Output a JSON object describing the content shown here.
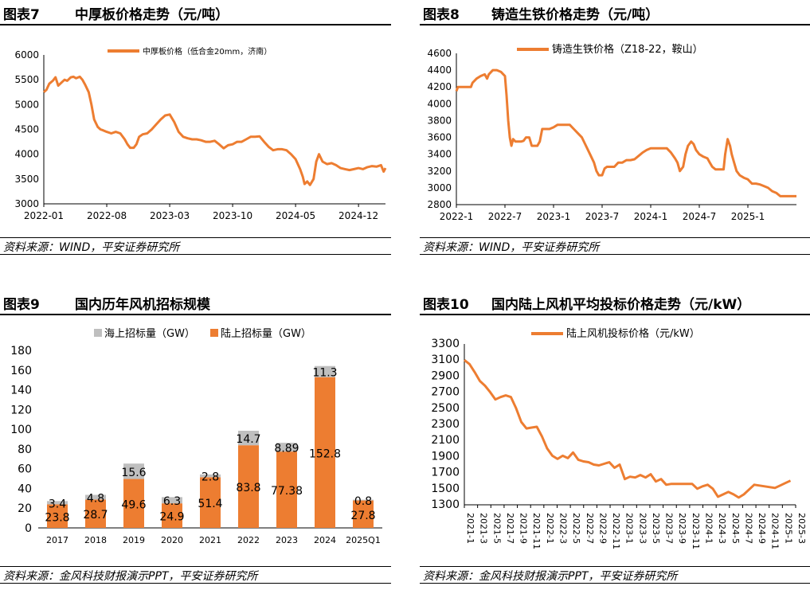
{
  "colors": {
    "series": "#ED7D31",
    "overseas": "#BFBFBF",
    "axis": "#000000"
  },
  "panels": [
    {
      "number": "图表7",
      "title": "中厚板价格走势（元/吨）",
      "source": "资料来源：WIND，平安证券研究所"
    },
    {
      "number": "图表8",
      "title": "铸造生铁价格走势（元/吨）",
      "source": "资料来源：WIND，平安证券研究所"
    },
    {
      "number": "图表9",
      "title": "国内历年风机招标规模",
      "source": "资料来源：金风科技财报演示PPT，平安证券研究所"
    },
    {
      "number": "图表10",
      "title": "国内陆上风机平均投标价格走势（元/kW）",
      "source": "资料来源：金风科技财报演示PPT，平安证券研究所"
    }
  ],
  "chart_data": [
    {
      "type": "line",
      "title": "中厚板价格走势（元/吨）",
      "legend": "中厚板价格（低合金20mm，济南）",
      "legend_position": "top",
      "ylim": [
        3000,
        6000
      ],
      "yticks": [
        "3000",
        "3500",
        "4000",
        "4500",
        "5000",
        "5500",
        "6000"
      ],
      "xlim": [
        0,
        38
      ],
      "xticks": [
        {
          "label": "2022-01",
          "x": 0
        },
        {
          "label": "2022-08",
          "x": 7
        },
        {
          "label": "2023-03",
          "x": 14
        },
        {
          "label": "2023-10",
          "x": 21
        },
        {
          "label": "2024-05",
          "x": 28
        },
        {
          "label": "2024-12",
          "x": 35
        }
      ],
      "points": [
        [
          0,
          5250
        ],
        [
          0.3,
          5300
        ],
        [
          0.6,
          5420
        ],
        [
          1,
          5480
        ],
        [
          1.3,
          5550
        ],
        [
          1.6,
          5380
        ],
        [
          2,
          5450
        ],
        [
          2.3,
          5500
        ],
        [
          2.6,
          5480
        ],
        [
          3,
          5550
        ],
        [
          3.3,
          5560
        ],
        [
          3.6,
          5530
        ],
        [
          4,
          5560
        ],
        [
          4.3,
          5500
        ],
        [
          4.6,
          5400
        ],
        [
          5,
          5250
        ],
        [
          5.3,
          5000
        ],
        [
          5.6,
          4700
        ],
        [
          6,
          4550
        ],
        [
          6.3,
          4500
        ],
        [
          6.6,
          4480
        ],
        [
          7,
          4450
        ],
        [
          7.5,
          4420
        ],
        [
          8,
          4450
        ],
        [
          8.5,
          4420
        ],
        [
          9,
          4300
        ],
        [
          9.3,
          4200
        ],
        [
          9.6,
          4130
        ],
        [
          10,
          4130
        ],
        [
          10.3,
          4200
        ],
        [
          10.6,
          4350
        ],
        [
          11,
          4400
        ],
        [
          11.5,
          4420
        ],
        [
          12,
          4500
        ],
        [
          12.5,
          4600
        ],
        [
          13,
          4700
        ],
        [
          13.5,
          4780
        ],
        [
          14,
          4800
        ],
        [
          14.5,
          4650
        ],
        [
          15,
          4450
        ],
        [
          15.5,
          4350
        ],
        [
          16,
          4320
        ],
        [
          16.5,
          4300
        ],
        [
          17,
          4300
        ],
        [
          17.5,
          4280
        ],
        [
          18,
          4250
        ],
        [
          18.5,
          4250
        ],
        [
          19,
          4270
        ],
        [
          19.5,
          4200
        ],
        [
          20,
          4120
        ],
        [
          20.5,
          4180
        ],
        [
          21,
          4200
        ],
        [
          21.5,
          4250
        ],
        [
          22,
          4250
        ],
        [
          22.5,
          4300
        ],
        [
          23,
          4350
        ],
        [
          23.5,
          4350
        ],
        [
          24,
          4360
        ],
        [
          24.5,
          4250
        ],
        [
          25,
          4150
        ],
        [
          25.5,
          4080
        ],
        [
          26,
          4100
        ],
        [
          26.5,
          4100
        ],
        [
          27,
          4080
        ],
        [
          27.5,
          4000
        ],
        [
          28,
          3900
        ],
        [
          28.5,
          3700
        ],
        [
          28.8,
          3550
        ],
        [
          29,
          3400
        ],
        [
          29.3,
          3450
        ],
        [
          29.6,
          3380
        ],
        [
          30,
          3500
        ],
        [
          30.3,
          3850
        ],
        [
          30.6,
          4000
        ],
        [
          31,
          3850
        ],
        [
          31.5,
          3800
        ],
        [
          32,
          3820
        ],
        [
          32.5,
          3780
        ],
        [
          33,
          3720
        ],
        [
          33.5,
          3700
        ],
        [
          34,
          3680
        ],
        [
          34.5,
          3700
        ],
        [
          35,
          3720
        ],
        [
          35.5,
          3700
        ],
        [
          36,
          3740
        ],
        [
          36.5,
          3760
        ],
        [
          37,
          3750
        ],
        [
          37.5,
          3780
        ],
        [
          37.8,
          3650
        ],
        [
          38,
          3720
        ]
      ]
    },
    {
      "type": "line",
      "title": "铸造生铁价格走势（元/吨）",
      "legend": "铸造生铁价格（Z18-22，鞍山）",
      "legend_position": "top",
      "ylim": [
        2800,
        4600
      ],
      "yticks": [
        "2800",
        "3000",
        "3200",
        "3400",
        "3600",
        "3800",
        "4000",
        "4200",
        "4400",
        "4600"
      ],
      "xlim": [
        0,
        42
      ],
      "xticks": [
        {
          "label": "2022-1",
          "x": 0
        },
        {
          "label": "2022-7",
          "x": 6
        },
        {
          "label": "2023-1",
          "x": 12
        },
        {
          "label": "2023-7",
          "x": 18
        },
        {
          "label": "2024-1",
          "x": 24
        },
        {
          "label": "2024-7",
          "x": 30
        },
        {
          "label": "2025-1",
          "x": 36
        }
      ],
      "points": [
        [
          0,
          4150
        ],
        [
          0.2,
          4200
        ],
        [
          1,
          4200
        ],
        [
          1.8,
          4200
        ],
        [
          2,
          4250
        ],
        [
          2.5,
          4300
        ],
        [
          3,
          4330
        ],
        [
          3.5,
          4350
        ],
        [
          3.8,
          4300
        ],
        [
          4,
          4350
        ],
        [
          4.5,
          4400
        ],
        [
          5,
          4400
        ],
        [
          5.5,
          4380
        ],
        [
          5.8,
          4350
        ],
        [
          6,
          4330
        ],
        [
          6.2,
          4100
        ],
        [
          6.4,
          3800
        ],
        [
          6.6,
          3600
        ],
        [
          6.8,
          3500
        ],
        [
          7,
          3580
        ],
        [
          7.3,
          3550
        ],
        [
          7.6,
          3550
        ],
        [
          8,
          3550
        ],
        [
          8.3,
          3560
        ],
        [
          8.6,
          3600
        ],
        [
          9,
          3600
        ],
        [
          9.3,
          3500
        ],
        [
          9.6,
          3500
        ],
        [
          10,
          3500
        ],
        [
          10.3,
          3550
        ],
        [
          10.6,
          3700
        ],
        [
          11,
          3700
        ],
        [
          11.5,
          3700
        ],
        [
          12,
          3720
        ],
        [
          12.5,
          3750
        ],
        [
          13,
          3750
        ],
        [
          13.5,
          3750
        ],
        [
          14,
          3750
        ],
        [
          14.5,
          3700
        ],
        [
          15,
          3650
        ],
        [
          15.5,
          3600
        ],
        [
          16,
          3500
        ],
        [
          16.5,
          3400
        ],
        [
          17,
          3300
        ],
        [
          17.3,
          3200
        ],
        [
          17.6,
          3150
        ],
        [
          18,
          3150
        ],
        [
          18.3,
          3230
        ],
        [
          18.6,
          3250
        ],
        [
          19,
          3250
        ],
        [
          19.5,
          3250
        ],
        [
          20,
          3300
        ],
        [
          20.5,
          3300
        ],
        [
          21,
          3330
        ],
        [
          21.5,
          3330
        ],
        [
          22,
          3340
        ],
        [
          22.5,
          3380
        ],
        [
          23,
          3420
        ],
        [
          23.5,
          3450
        ],
        [
          24,
          3470
        ],
        [
          24.5,
          3470
        ],
        [
          25,
          3470
        ],
        [
          25.5,
          3470
        ],
        [
          26,
          3470
        ],
        [
          26.5,
          3420
        ],
        [
          27,
          3350
        ],
        [
          27.3,
          3300
        ],
        [
          27.6,
          3200
        ],
        [
          28,
          3250
        ],
        [
          28.3,
          3400
        ],
        [
          28.6,
          3500
        ],
        [
          29,
          3550
        ],
        [
          29.3,
          3520
        ],
        [
          29.6,
          3450
        ],
        [
          30,
          3400
        ],
        [
          30.5,
          3370
        ],
        [
          31,
          3350
        ],
        [
          31.3,
          3300
        ],
        [
          31.6,
          3250
        ],
        [
          32,
          3220
        ],
        [
          32.5,
          3220
        ],
        [
          33,
          3220
        ],
        [
          33.2,
          3400
        ],
        [
          33.5,
          3580
        ],
        [
          33.8,
          3500
        ],
        [
          34,
          3400
        ],
        [
          34.3,
          3300
        ],
        [
          34.6,
          3200
        ],
        [
          35,
          3150
        ],
        [
          35.5,
          3120
        ],
        [
          36,
          3100
        ],
        [
          36.5,
          3050
        ],
        [
          37,
          3050
        ],
        [
          37.5,
          3040
        ],
        [
          38,
          3020
        ],
        [
          38.5,
          3000
        ],
        [
          39,
          2960
        ],
        [
          39.5,
          2940
        ],
        [
          40,
          2900
        ],
        [
          41,
          2900
        ],
        [
          42,
          2900
        ]
      ]
    },
    {
      "type": "bar",
      "stacked": true,
      "title": "国内历年风机招标规模",
      "legend_position": "top",
      "ylim": [
        0,
        180
      ],
      "yticks": [
        "0",
        "20",
        "40",
        "60",
        "80",
        "100",
        "120",
        "140",
        "160",
        "180"
      ],
      "categories": [
        "2017",
        "2018",
        "2019",
        "2020",
        "2021",
        "2022",
        "2023",
        "2024",
        "2025Q1"
      ],
      "series": [
        {
          "name": "陆上招标量（GW）",
          "color": "#ED7D31",
          "values": [
            23.8,
            28.7,
            49.6,
            24.9,
            51.4,
            83.8,
            77.38,
            152.8,
            27.8
          ],
          "labels": [
            "23.8",
            "28.7",
            "49.6",
            "24.9",
            "51.4",
            "83.8",
            "77.38",
            "152.8",
            "27.8"
          ]
        },
        {
          "name": "海上招标量（GW）",
          "color": "#BFBFBF",
          "values": [
            3.4,
            4.8,
            15.6,
            6.3,
            2.8,
            14.7,
            8.89,
            11.3,
            0.8
          ],
          "labels": [
            "3.4",
            "4.8",
            "15.6",
            "6.3",
            "2.8",
            "14.7",
            "8.89",
            "11.3",
            "0.8"
          ]
        }
      ]
    },
    {
      "type": "line",
      "title": "国内陆上风机平均投标价格走势（元/kW）",
      "legend": "陆上风机投标价格（元/kW）",
      "legend_position": "top",
      "ylim": [
        1300,
        3300
      ],
      "yticks": [
        "1300",
        "1500",
        "1700",
        "1900",
        "2100",
        "2300",
        "2500",
        "2700",
        "2900",
        "3100",
        "3300"
      ],
      "categories": [
        "2021-1",
        "2021-3",
        "2021-5",
        "2021-7",
        "2021-9",
        "2021-11",
        "2022-1",
        "2022-3",
        "2022-5",
        "2022-7",
        "2022-9",
        "2022-11",
        "2023-1",
        "2023-3",
        "2023-5",
        "2023-7",
        "2023-9",
        "2023-11",
        "2024-1",
        "2024-3",
        "2024-5",
        "2024-7",
        "2024-9",
        "2024-11",
        "2025-1",
        "2025-3"
      ],
      "points": [
        [
          0,
          3100
        ],
        [
          0.5,
          3050
        ],
        [
          1,
          2950
        ],
        [
          1.5,
          2840
        ],
        [
          2,
          2780
        ],
        [
          2.5,
          2700
        ],
        [
          3,
          2610
        ],
        [
          3.5,
          2640
        ],
        [
          4,
          2660
        ],
        [
          4.5,
          2640
        ],
        [
          5,
          2500
        ],
        [
          5.5,
          2330
        ],
        [
          6,
          2250
        ],
        [
          6.5,
          2260
        ],
        [
          7,
          2270
        ],
        [
          7.5,
          2150
        ],
        [
          8,
          2000
        ],
        [
          8.5,
          1910
        ],
        [
          9,
          1870
        ],
        [
          9.5,
          1910
        ],
        [
          10,
          1880
        ],
        [
          10.5,
          1950
        ],
        [
          11,
          1860
        ],
        [
          11.5,
          1840
        ],
        [
          12,
          1830
        ],
        [
          12.5,
          1800
        ],
        [
          13,
          1790
        ],
        [
          13.5,
          1810
        ],
        [
          14,
          1830
        ],
        [
          14.5,
          1760
        ],
        [
          15,
          1800
        ],
        [
          15.5,
          1620
        ],
        [
          16,
          1650
        ],
        [
          16.5,
          1640
        ],
        [
          17,
          1670
        ],
        [
          17.5,
          1640
        ],
        [
          18,
          1680
        ],
        [
          18.5,
          1590
        ],
        [
          19,
          1620
        ],
        [
          19.5,
          1550
        ],
        [
          20,
          1560
        ],
        [
          21,
          1560
        ],
        [
          22,
          1560
        ],
        [
          22.5,
          1500
        ],
        [
          23,
          1530
        ],
        [
          23.5,
          1550
        ],
        [
          24,
          1500
        ],
        [
          24.5,
          1400
        ],
        [
          25,
          1430
        ],
        [
          25.5,
          1460
        ],
        [
          26,
          1430
        ],
        [
          26.5,
          1390
        ],
        [
          27,
          1430
        ],
        [
          27.5,
          1490
        ],
        [
          28,
          1550
        ],
        [
          28.5,
          1540
        ],
        [
          29,
          1530
        ],
        [
          29.5,
          1520
        ],
        [
          30,
          1510
        ],
        [
          30.5,
          1540
        ],
        [
          31,
          1570
        ],
        [
          31.5,
          1600
        ]
      ]
    }
  ]
}
